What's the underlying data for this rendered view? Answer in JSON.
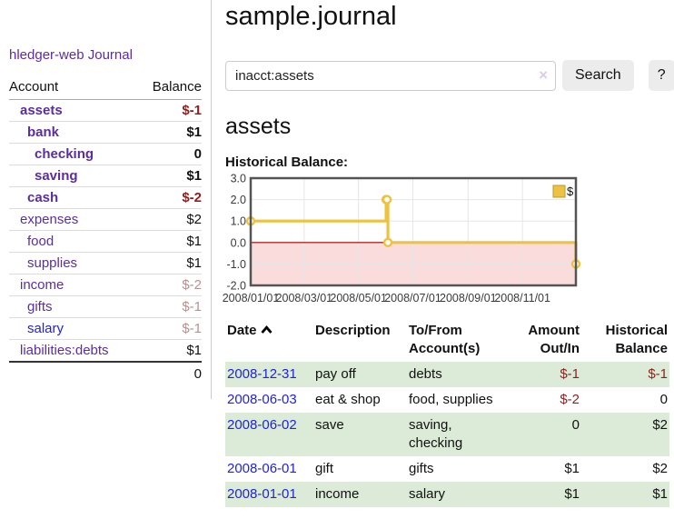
{
  "colors": {
    "link_purple": "#5c2d9e",
    "link_blue": "#2222dd",
    "negative_red": "#8f1f1f",
    "muted_negative_rose": "#b98f8f",
    "row_stripe_green": "#dcebd7",
    "button_bg": "#ececec",
    "series_gold": "#edc240",
    "chart_negative_fill": "#fadcdd",
    "chart_zero_line": "#a00000",
    "chart_border": "#545454",
    "chart_grid": "#e6e6e6"
  },
  "sidebar": {
    "app_title": "hledger-web",
    "journal_link": "Journal",
    "accounts_header": {
      "account": "Account",
      "balance": "Balance"
    },
    "accounts": [
      {
        "name": "assets",
        "balance": "$-1",
        "indent": 1,
        "bold": true,
        "balance_color": "negative"
      },
      {
        "name": "bank",
        "balance": "$1",
        "indent": 2,
        "bold": true,
        "balance_color": "normal"
      },
      {
        "name": "checking",
        "balance": "0",
        "indent": 3,
        "bold": true,
        "balance_color": "normal"
      },
      {
        "name": "saving",
        "balance": "$1",
        "indent": 3,
        "bold": true,
        "balance_color": "normal"
      },
      {
        "name": "cash",
        "balance": "$-2",
        "indent": 2,
        "bold": true,
        "balance_color": "negative"
      },
      {
        "name": "expenses",
        "balance": "$2",
        "indent": 1,
        "bold": false,
        "balance_color": "normal"
      },
      {
        "name": "food",
        "balance": "$1",
        "indent": 2,
        "bold": false,
        "balance_color": "normal"
      },
      {
        "name": "supplies",
        "balance": "$1",
        "indent": 2,
        "bold": false,
        "balance_color": "normal"
      },
      {
        "name": "income",
        "balance": "$-2",
        "indent": 1,
        "bold": false,
        "balance_color": "muted-negative"
      },
      {
        "name": "gifts",
        "balance": "$-1",
        "indent": 2,
        "bold": false,
        "balance_color": "muted-negative"
      },
      {
        "name": "salary",
        "balance": "$-1",
        "indent": 2,
        "bold": false,
        "balance_color": "muted-negative",
        "link_color": "blue"
      },
      {
        "name": "liabilities:debts",
        "balance": "$1",
        "indent": 1,
        "bold": false,
        "balance_color": "normal"
      }
    ],
    "total": "0"
  },
  "main": {
    "title": "sample.journal",
    "search": {
      "value": "inacct:assets",
      "clear_icon": "×",
      "button_label": "Search",
      "help_label": "?"
    },
    "account_heading": "assets",
    "chart_label": "Historical Balance:"
  },
  "chart_data": {
    "type": "line",
    "mode": "steps",
    "title": "Historical Balance",
    "series": [
      {
        "name": "$",
        "color": "#edc240",
        "points": [
          {
            "date": "2008-01-01",
            "value": 1
          },
          {
            "date": "2008-06-01",
            "value": 2
          },
          {
            "date": "2008-06-02",
            "value": 2
          },
          {
            "date": "2008-06-03",
            "value": 0
          },
          {
            "date": "2008-12-31",
            "value": -1
          }
        ]
      }
    ],
    "x_ticks": [
      "2008/01/01",
      "2008/03/01",
      "2008/05/01",
      "2008/07/01",
      "2008/09/01",
      "2008/11/01"
    ],
    "x_tick_days": [
      0,
      60,
      121,
      182,
      244,
      305
    ],
    "xlim_days": [
      0,
      365
    ],
    "y_ticks": [
      "3.0",
      "2.0",
      "1.0",
      "0.0",
      "-1.0",
      "-2.0"
    ],
    "ylim": [
      -2,
      3
    ],
    "grid": true,
    "negative_region_shaded": true,
    "legend": {
      "label": "$",
      "position": "top-right"
    }
  },
  "register": {
    "headers": {
      "date": "Date",
      "description": "Description",
      "account": "To/From Account(s)",
      "amount": "Amount Out/In",
      "balance": "Historical Balance"
    },
    "sort": {
      "column": "date",
      "direction": "asc"
    },
    "rows": [
      {
        "date": "2008-12-31",
        "description": "pay off",
        "accounts": "debts",
        "amount": "$-1",
        "amount_negative": true,
        "balance": "$-1",
        "balance_negative": true
      },
      {
        "date": "2008-06-03",
        "description": "eat & shop",
        "accounts": "food, supplies",
        "amount": "$-2",
        "amount_negative": true,
        "balance": "0",
        "balance_negative": false
      },
      {
        "date": "2008-06-02",
        "description": "save",
        "accounts": "saving, checking",
        "amount": "0",
        "amount_negative": false,
        "balance": "$2",
        "balance_negative": false
      },
      {
        "date": "2008-06-01",
        "description": "gift",
        "accounts": "gifts",
        "amount": "$1",
        "amount_negative": false,
        "balance": "$2",
        "balance_negative": false
      },
      {
        "date": "2008-01-01",
        "description": "income",
        "accounts": "salary",
        "amount": "$1",
        "amount_negative": false,
        "balance": "$1",
        "balance_negative": false
      }
    ]
  }
}
